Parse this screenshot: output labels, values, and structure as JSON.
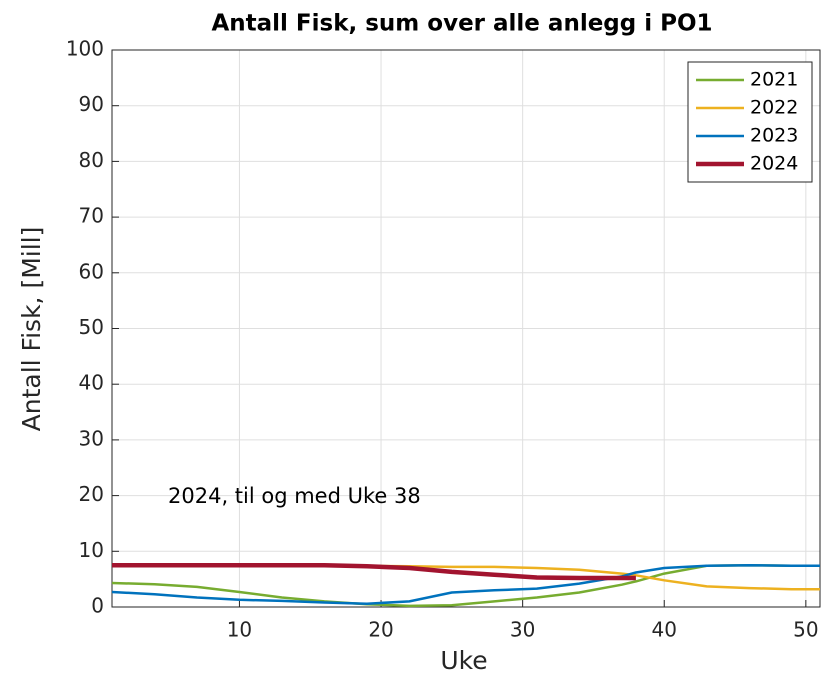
{
  "chart_data": {
    "type": "line",
    "title": "Antall Fisk, sum over alle anlegg i PO1",
    "x_label": "Uke",
    "y_label": "Antall Fisk, [Mill]",
    "annotation": "2024, til og med Uke 38",
    "x": [
      1,
      4,
      7,
      10,
      13,
      16,
      19,
      22,
      25,
      28,
      31,
      34,
      37,
      38,
      40,
      43,
      46,
      49,
      51
    ],
    "series": [
      {
        "name": "2021",
        "color": "#77ac30",
        "width": 2.5,
        "values": [
          4.3,
          4.1,
          3.6,
          2.7,
          1.7,
          1.0,
          0.5,
          0.2,
          0.3,
          1.0,
          1.7,
          2.6,
          4.0,
          4.6,
          6.0,
          7.4,
          7.5,
          7.4,
          7.4
        ]
      },
      {
        "name": "2022",
        "color": "#edb120",
        "width": 2.5,
        "values": [
          7.5,
          7.5,
          7.5,
          7.5,
          7.5,
          7.5,
          7.4,
          7.3,
          7.2,
          7.2,
          7.0,
          6.7,
          6.0,
          5.7,
          4.8,
          3.7,
          3.4,
          3.2,
          3.2
        ]
      },
      {
        "name": "2023",
        "color": "#0072bd",
        "width": 2.5,
        "values": [
          2.7,
          2.3,
          1.7,
          1.3,
          1.1,
          0.8,
          0.6,
          1.0,
          2.6,
          3.0,
          3.3,
          4.2,
          5.5,
          6.2,
          7.0,
          7.4,
          7.5,
          7.4,
          7.4
        ]
      },
      {
        "name": "2024",
        "color": "#a2142f",
        "width": 4.5,
        "values": [
          7.5,
          7.5,
          7.5,
          7.5,
          7.5,
          7.5,
          7.3,
          7.0,
          6.3,
          5.8,
          5.3,
          5.2,
          5.2,
          5.2,
          null,
          null,
          null,
          null,
          null
        ]
      }
    ],
    "xlim": [
      1,
      51
    ],
    "ylim": [
      0,
      100
    ],
    "xticks": [
      10,
      20,
      30,
      40,
      50
    ],
    "yticks": [
      0,
      10,
      20,
      30,
      40,
      50,
      60,
      70,
      80,
      90,
      100
    ],
    "grid": true,
    "legend": "northeast"
  }
}
